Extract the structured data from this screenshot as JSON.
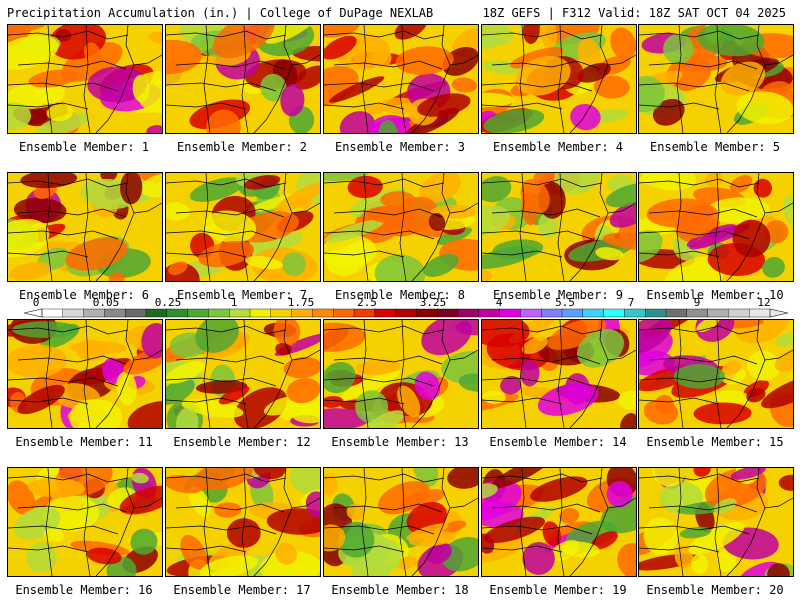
{
  "header": {
    "left": "Precipitation Accumulation (in.) | College of DuPage NEXLAB",
    "right": "18Z GEFS | F312 Valid: 18Z SAT OCT 04 2025"
  },
  "colorbar": {
    "labels": [
      "0",
      "0.05",
      "0.25",
      "1",
      "1.75",
      "2.5",
      "3.25",
      "4",
      "5.5",
      "7",
      "9",
      "12"
    ],
    "colors": [
      "#ffffff",
      "#d8d8d8",
      "#b0b0b0",
      "#8a8a8a",
      "#6a6a6a",
      "#1f6b1f",
      "#2f8f2f",
      "#4fa832",
      "#7cc63c",
      "#b3dc3c",
      "#f2f200",
      "#f5d100",
      "#ffb000",
      "#ff8c00",
      "#ff6a00",
      "#f23c00",
      "#d80000",
      "#b00000",
      "#8c0000",
      "#7a0020",
      "#a0006a",
      "#c000a0",
      "#e000e0",
      "#c060ff",
      "#8080ff",
      "#5aa0ff",
      "#40d0ff",
      "#30ffff",
      "#30c8c8",
      "#309090",
      "#707070",
      "#909090",
      "#b0b0b0",
      "#d0d0d0",
      "#e8e8e8"
    ]
  },
  "panels": [
    {
      "label": "Ensemble Member: 1",
      "intensity": 0.45,
      "seed": 1
    },
    {
      "label": "Ensemble Member: 2",
      "intensity": 0.5,
      "seed": 2
    },
    {
      "label": "Ensemble Member: 3",
      "intensity": 0.7,
      "seed": 3
    },
    {
      "label": "Ensemble Member: 4",
      "intensity": 0.35,
      "seed": 4
    },
    {
      "label": "Ensemble Member: 5",
      "intensity": 0.4,
      "seed": 5
    },
    {
      "label": "Ensemble Member: 6",
      "intensity": 0.5,
      "seed": 6
    },
    {
      "label": "Ensemble Member: 7",
      "intensity": 0.35,
      "seed": 7
    },
    {
      "label": "Ensemble Member: 8",
      "intensity": 0.45,
      "seed": 8
    },
    {
      "label": "Ensemble Member: 9",
      "intensity": 0.45,
      "seed": 9
    },
    {
      "label": "Ensemble Member: 10",
      "intensity": 0.4,
      "seed": 10
    },
    {
      "label": "Ensemble Member: 11",
      "intensity": 0.5,
      "seed": 11
    },
    {
      "label": "Ensemble Member: 12",
      "intensity": 0.35,
      "seed": 12
    },
    {
      "label": "Ensemble Member: 13",
      "intensity": 0.6,
      "seed": 13
    },
    {
      "label": "Ensemble Member: 14",
      "intensity": 0.75,
      "seed": 14
    },
    {
      "label": "Ensemble Member: 15",
      "intensity": 0.55,
      "seed": 15
    },
    {
      "label": "Ensemble Member: 16",
      "intensity": 0.5,
      "seed": 16
    },
    {
      "label": "Ensemble Member: 17",
      "intensity": 0.45,
      "seed": 17
    },
    {
      "label": "Ensemble Member: 18",
      "intensity": 0.55,
      "seed": 18
    },
    {
      "label": "Ensemble Member: 19",
      "intensity": 0.5,
      "seed": 19
    },
    {
      "label": "Ensemble Member: 20",
      "intensity": 0.35,
      "seed": 20
    }
  ]
}
